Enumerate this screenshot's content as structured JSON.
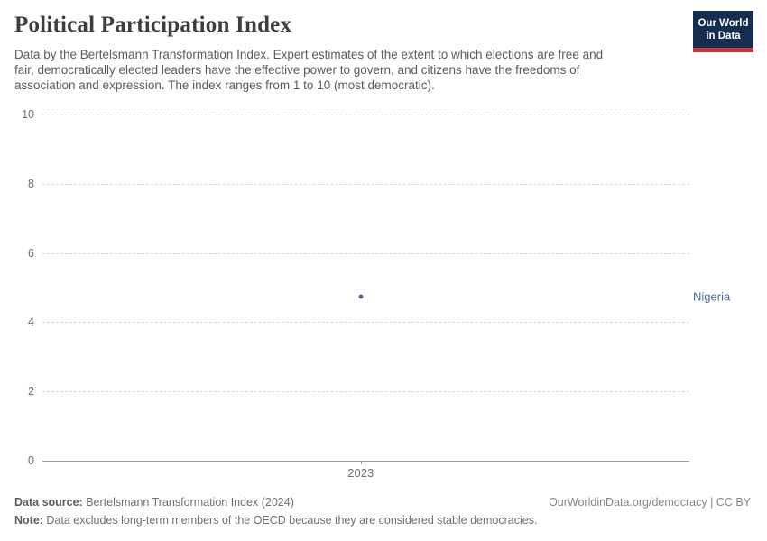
{
  "header": {
    "title": "Political Participation Index",
    "subtitle_lines": [
      "Data by the Bertelsmann Transformation Index. Expert estimates of the extent to which elections are free and",
      "fair, democratically elected leaders have the effective power to govern, and citizens have the freedoms of",
      "association and expression. The index ranges from 1 to 10 (most democratic)."
    ]
  },
  "logo": {
    "line1": "Our World",
    "line2": "in Data",
    "bg_color": "#152d4f",
    "bar_color": "#c9363c"
  },
  "chart_data": {
    "type": "scatter",
    "title": "Political Participation Index",
    "x": [
      2023
    ],
    "xtick_labels": [
      "2023"
    ],
    "series": [
      {
        "name": "Nigeria",
        "values": [
          4.75
        ]
      }
    ],
    "ylim": [
      0,
      10
    ],
    "yticks": [
      0,
      2,
      4,
      6,
      8,
      10
    ],
    "xlabel": "",
    "ylabel": "",
    "grid": "horizontal-dashed",
    "legend_position": "right-of-point",
    "entity_label": "Nigeria",
    "entity_color": "#4c6a9c",
    "point_color": "#4c6a9c"
  },
  "footer": {
    "datasource_label": "Data source:",
    "datasource_value": " Bertelsmann Transformation Index (2024)",
    "rights": "OurWorldinData.org/democracy | CC BY",
    "note_label": "Note:",
    "note_value": " Data excludes long-term members of the OECD because they are considered stable democracies."
  }
}
